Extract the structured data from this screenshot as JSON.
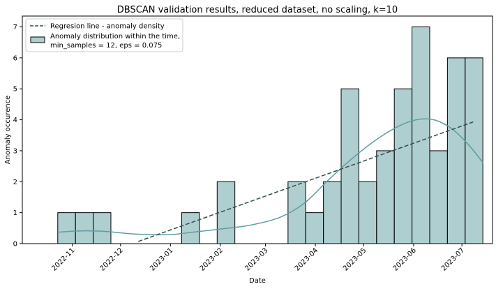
{
  "chart_data": {
    "type": "bar",
    "title": "DBSCAN validation results, reduced dataset, no scaling, k=10",
    "xlabel": "Date",
    "ylabel": "Anomaly occurence",
    "x_axis": "date",
    "xlim": [
      "2022-10-01",
      "2023-07-20"
    ],
    "ylim": [
      0,
      7.35
    ],
    "yticks": [
      0,
      1,
      2,
      3,
      4,
      5,
      6,
      7
    ],
    "xticks": [
      "2022-11",
      "2022-12",
      "2023-01",
      "2023-02",
      "2023-03",
      "2023-04",
      "2023-05",
      "2023-06",
      "2023-07"
    ],
    "grid": false,
    "legend_position": "top-left",
    "histogram": {
      "name": "Anomaly distribution within the time,\nmin_samples = 12, eps = 0.075",
      "bin_edges": [
        "2022-10-23",
        "2022-11-03",
        "2022-11-14",
        "2022-11-25",
        "2022-12-06",
        "2022-12-17",
        "2022-12-28",
        "2023-01-08",
        "2023-01-19",
        "2023-01-30",
        "2023-02-10",
        "2023-02-21",
        "2023-03-04",
        "2023-03-15",
        "2023-03-26",
        "2023-04-06",
        "2023-04-17",
        "2023-04-28",
        "2023-05-09",
        "2023-05-20",
        "2023-05-31",
        "2023-06-11",
        "2023-06-22",
        "2023-07-03",
        "2023-07-14"
      ],
      "values": [
        1,
        1,
        1,
        0,
        0,
        0,
        0,
        1,
        0,
        2,
        0,
        0,
        0,
        2,
        1,
        2,
        5,
        2,
        3,
        5,
        7,
        3,
        6,
        6
      ],
      "fill": "#5f9ea0",
      "fill_opacity": 0.5,
      "edge": "#000000"
    },
    "kde": {
      "color": "#5f9ea0",
      "x": [
        "2022-10-23",
        "2022-11-05",
        "2022-11-20",
        "2022-12-10",
        "2022-12-31",
        "2023-01-15",
        "2023-02-01",
        "2023-02-20",
        "2023-03-10",
        "2023-03-25",
        "2023-04-10",
        "2023-04-25",
        "2023-05-10",
        "2023-05-25",
        "2023-06-05",
        "2023-06-15",
        "2023-06-25",
        "2023-07-05",
        "2023-07-14"
      ],
      "y": [
        0.37,
        0.41,
        0.4,
        0.31,
        0.29,
        0.37,
        0.47,
        0.6,
        0.85,
        1.3,
        2.1,
        2.8,
        3.4,
        3.85,
        4.02,
        3.98,
        3.7,
        3.2,
        2.62
      ]
    },
    "regression": {
      "name": "Regresion line - anomaly density",
      "color": "#2f4f4f",
      "dashed": true,
      "x": [
        "2022-12-12",
        "2023-07-08"
      ],
      "y": [
        0.07,
        3.93
      ]
    }
  }
}
